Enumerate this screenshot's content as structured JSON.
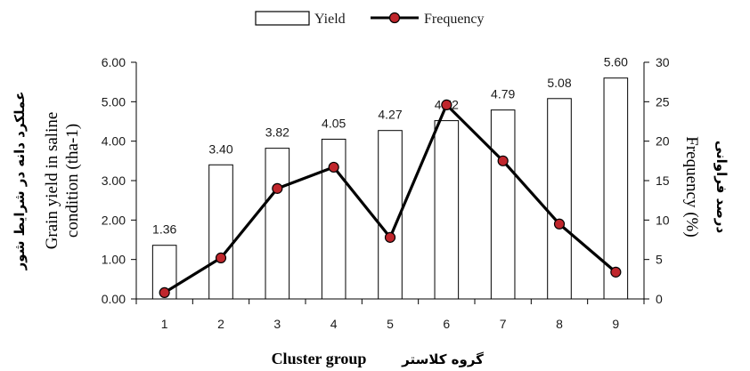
{
  "chart_data": {
    "type": "bar",
    "categories": [
      "1",
      "2",
      "3",
      "4",
      "5",
      "6",
      "7",
      "8",
      "9"
    ],
    "series": [
      {
        "name": "Yield",
        "type": "bar",
        "axis": "left",
        "values": [
          1.36,
          3.4,
          3.82,
          4.05,
          4.27,
          4.52,
          4.79,
          5.08,
          5.6
        ]
      },
      {
        "name": "Frequency",
        "type": "line",
        "axis": "right",
        "values": [
          0.8,
          5.2,
          14.0,
          16.7,
          7.8,
          24.6,
          17.5,
          9.5,
          3.4
        ]
      }
    ],
    "data_labels": [
      "1.36",
      "3.40",
      "3.82",
      "4.05",
      "4.27",
      "4.52",
      "4.79",
      "5.08",
      "5.60"
    ],
    "y_left": {
      "ylim": [
        0,
        6
      ],
      "ticks": [
        "0.00",
        "1.00",
        "2.00",
        "3.00",
        "4.00",
        "5.00",
        "6.00"
      ],
      "label_en_line1": "Grain yield in saline",
      "label_en_line2": "condition (tha-1)",
      "label_fa": "عملکرد دانه در شرایط شور"
    },
    "y_right": {
      "ylim": [
        0,
        30
      ],
      "ticks": [
        "0",
        "5",
        "10",
        "15",
        "20",
        "25",
        "30"
      ],
      "label_en": "Frequency (%)",
      "label_fa": "درصد فراوانی"
    },
    "xlabel_en": "Cluster group",
    "xlabel_fa": "گروه کلاستر",
    "legend": {
      "position": "top-center",
      "items": [
        "Yield",
        "Frequency"
      ]
    },
    "grid": false,
    "colors": {
      "bar_fill": "#ffffff",
      "bar_stroke": "#000000",
      "line": "#000000",
      "marker": "#c0262c"
    }
  }
}
